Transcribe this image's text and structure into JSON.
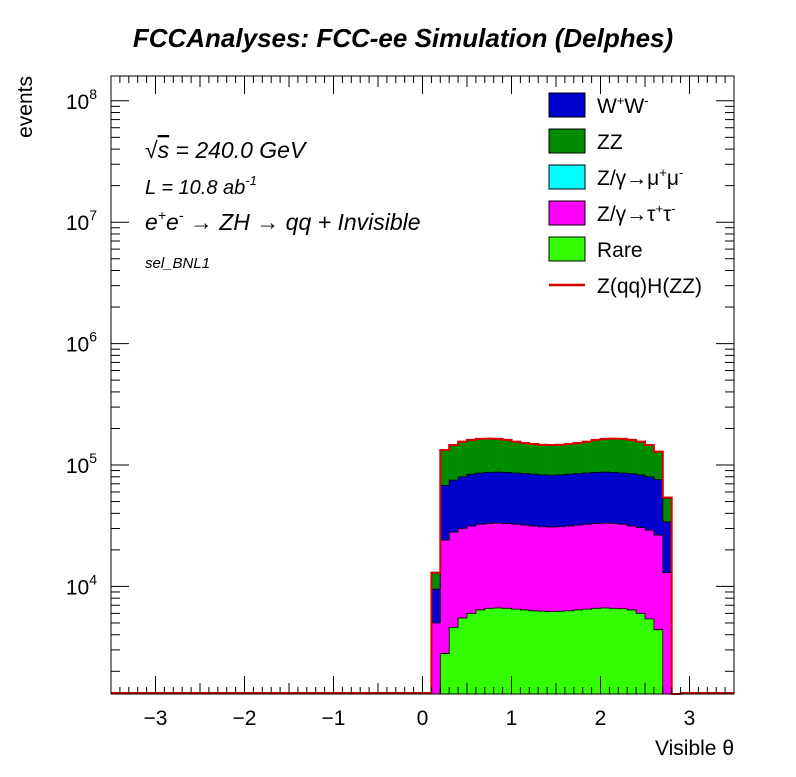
{
  "chart_data": {
    "type": "area",
    "title": "FCCAnalyses: FCC-ee Simulation (Delphes)",
    "xlabel": "Visible θ",
    "ylabel": "events",
    "log_y": true,
    "xlim": [
      -3.5,
      3.5
    ],
    "ylim": [
      1300,
      160000000
    ],
    "x_ticks": [
      -3,
      -2,
      -1,
      0,
      1,
      2,
      3
    ],
    "y_ticks": [
      {
        "value": 10000,
        "base": "10",
        "exp": "4"
      },
      {
        "value": 100000,
        "base": "10",
        "exp": "5"
      },
      {
        "value": 1000000,
        "base": "10",
        "exp": "6"
      },
      {
        "value": 10000000,
        "base": "10",
        "exp": "7"
      },
      {
        "value": 100000000,
        "base": "10",
        "exp": "8"
      }
    ],
    "annotations": {
      "sqrt_symbol": "√",
      "energy_s": "s",
      "energy_rest": " = 240.0 GeV",
      "lumi_main": "L = 10.8 ab",
      "lumi_exp": "-1",
      "process_e1": "e",
      "process_sup1": "+",
      "process_e2": "e",
      "process_sup2": "-",
      "process_rest": " → ZH → qq + Invisible",
      "selection": "sel_BNL1"
    },
    "legend": {
      "position": "top-right",
      "entries": [
        {
          "key": "ww",
          "parts": [
            {
              "t": "W"
            },
            {
              "t": "+",
              "sup": true
            },
            {
              "t": "W"
            },
            {
              "t": "-",
              "sup": true
            }
          ],
          "color": "#0000cc",
          "style": "fill"
        },
        {
          "key": "zz",
          "parts": [
            {
              "t": "ZZ"
            }
          ],
          "color": "#008c00",
          "style": "fill"
        },
        {
          "key": "zmumu",
          "parts": [
            {
              "t": "Z/γ→μ"
            },
            {
              "t": "+",
              "sup": true
            },
            {
              "t": "μ"
            },
            {
              "t": "-",
              "sup": true
            }
          ],
          "color": "#00ffff",
          "style": "fill"
        },
        {
          "key": "ztautau",
          "parts": [
            {
              "t": "Z/γ→τ"
            },
            {
              "t": "+",
              "sup": true
            },
            {
              "t": "τ"
            },
            {
              "t": "-",
              "sup": true
            }
          ],
          "color": "#ff00ff",
          "style": "fill"
        },
        {
          "key": "rare",
          "parts": [
            {
              "t": "Rare"
            }
          ],
          "color": "#33ff00",
          "style": "fill"
        },
        {
          "key": "signal",
          "parts": [
            {
              "t": "Z(qq)H(ZZ)"
            }
          ],
          "color": "#dd0000",
          "style": "line"
        }
      ]
    },
    "bins": {
      "start": -3.5,
      "width": 0.1,
      "count": 70,
      "nonzero_start_index": 36
    },
    "stack_order": [
      "rare",
      "ztautau",
      "zmumu",
      "ww",
      "zz"
    ],
    "series": [
      {
        "name": "Rare",
        "key": "rare",
        "color": "#33ff00",
        "values": [
          1300,
          2800,
          4600,
          5500,
          6000,
          6400,
          6600,
          6650,
          6600,
          6500,
          6400,
          6300,
          6250,
          6200,
          6250,
          6300,
          6400,
          6500,
          6600,
          6650,
          6600,
          6550,
          6400,
          6000,
          5400,
          4400,
          1300,
          1300
        ]
      },
      {
        "name": "Z/γ→ττ",
        "key": "ztautau",
        "color": "#ff00ff",
        "values": [
          5000,
          24000,
          28000,
          30000,
          31500,
          32500,
          33000,
          33200,
          33000,
          32500,
          32000,
          31500,
          31000,
          30800,
          31000,
          31500,
          32000,
          32500,
          33000,
          33200,
          33000,
          32500,
          31500,
          30500,
          29000,
          26500,
          13000,
          1300
        ]
      },
      {
        "name": "Z/γ→μμ",
        "key": "zmumu",
        "color": "#00ffff",
        "values": [
          5000,
          24000,
          28000,
          30000,
          31500,
          32500,
          33000,
          33200,
          33000,
          32500,
          32000,
          31500,
          31000,
          30800,
          31000,
          31500,
          32000,
          32500,
          33000,
          33200,
          33000,
          32500,
          31500,
          30500,
          29000,
          26500,
          13000,
          1300
        ]
      },
      {
        "name": "W+W-",
        "key": "ww",
        "color": "#0000cc",
        "values": [
          9500,
          68000,
          75000,
          80000,
          84000,
          86000,
          87000,
          87500,
          87000,
          86000,
          85000,
          84000,
          83000,
          82500,
          83000,
          84000,
          85000,
          86000,
          87000,
          87500,
          87000,
          86000,
          85000,
          83000,
          80000,
          76000,
          34000,
          1300
        ]
      },
      {
        "name": "ZZ",
        "key": "zz",
        "color": "#008c00",
        "values": [
          13000,
          132000,
          145000,
          155000,
          160000,
          163000,
          164000,
          163000,
          160000,
          155000,
          151000,
          148000,
          146000,
          145000,
          146000,
          148000,
          151000,
          155000,
          160000,
          163000,
          164000,
          163000,
          160000,
          155000,
          145000,
          128000,
          53000,
          1300
        ]
      },
      {
        "name": "Z(qq)H(ZZ)",
        "key": "signal",
        "color": "#dd0000",
        "values": [
          13000,
          133000,
          146000,
          156000,
          161000,
          164000,
          165000,
          164000,
          161000,
          156000,
          152000,
          149000,
          147000,
          146000,
          147000,
          149000,
          152000,
          156000,
          161000,
          164000,
          165000,
          164000,
          161000,
          156000,
          146000,
          129000,
          54000,
          1300
        ]
      }
    ]
  }
}
